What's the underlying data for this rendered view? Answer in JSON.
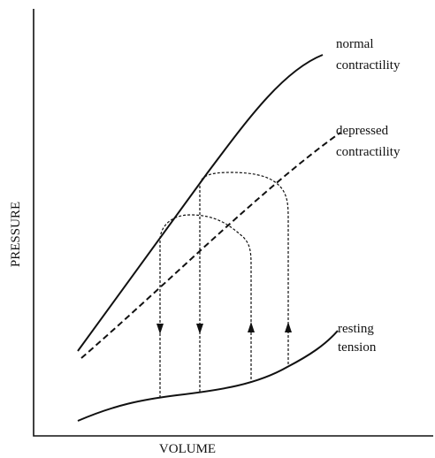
{
  "axes": {
    "y_label": "PRESSURE",
    "x_label": "VOLUME"
  },
  "curves": [
    {
      "label_lines": [
        "normal",
        "contractility"
      ]
    },
    {
      "label_lines": [
        "depressed",
        "contractility"
      ]
    },
    {
      "label_lines": [
        "resting",
        "tension"
      ]
    }
  ]
}
